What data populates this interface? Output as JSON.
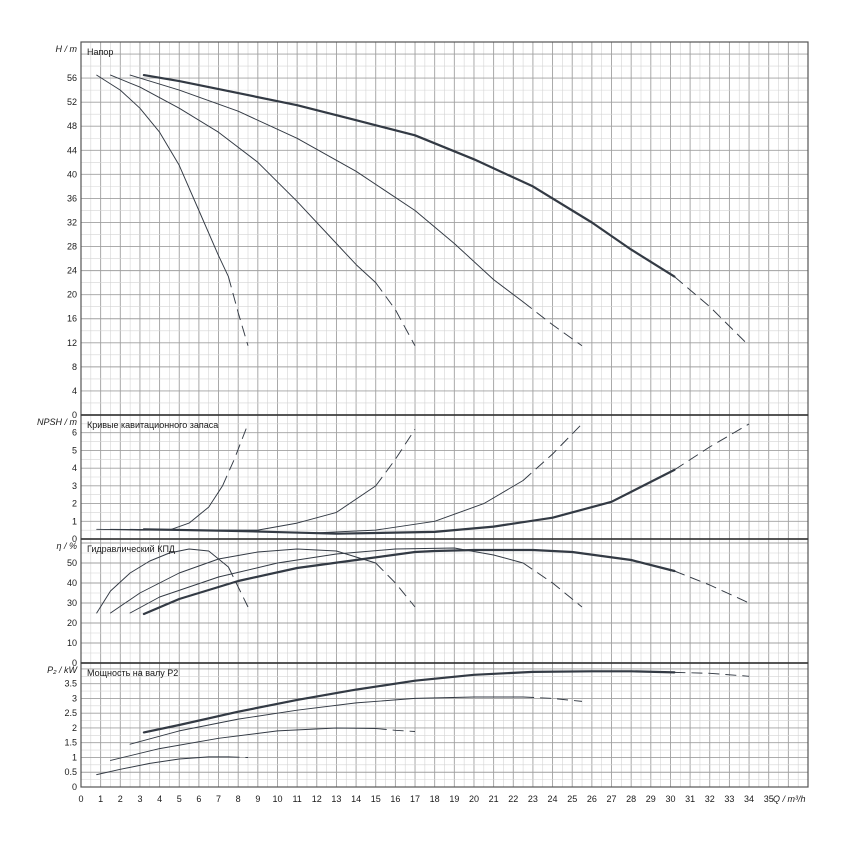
{
  "chart_data": {
    "type": "line",
    "x_axis": {
      "label": "Q / m³/h",
      "range": [
        0,
        37
      ],
      "ticks": [
        0,
        1,
        2,
        3,
        4,
        5,
        6,
        7,
        8,
        9,
        10,
        11,
        12,
        13,
        14,
        15,
        16,
        17,
        18,
        19,
        20,
        21,
        22,
        23,
        24,
        25,
        26,
        27,
        28,
        29,
        30,
        31,
        32,
        33,
        34,
        35
      ]
    },
    "panels": [
      {
        "id": "head",
        "title": "Напор",
        "ylabel": "H / m",
        "ylim": [
          0,
          62
        ],
        "ticks": [
          0,
          4,
          8,
          12,
          16,
          20,
          24,
          28,
          32,
          36,
          40,
          44,
          48,
          52,
          56
        ],
        "tick_labels": [
          "0",
          "4",
          "8",
          "12",
          "16",
          "20",
          "24",
          "28",
          "32",
          "36",
          "40",
          "44",
          "48",
          "52",
          "56"
        ],
        "series": [
          {
            "solid": [
              [
                0.8,
                56.5
              ],
              [
                2,
                54
              ],
              [
                3,
                51
              ],
              [
                4,
                47
              ],
              [
                5,
                41.5
              ],
              [
                6,
                34
              ],
              [
                7,
                26.5
              ],
              [
                7.5,
                23
              ]
            ],
            "dashed": [
              [
                7.5,
                23
              ],
              [
                8,
                17
              ],
              [
                8.5,
                11.5
              ]
            ]
          },
          {
            "solid": [
              [
                1.5,
                56.5
              ],
              [
                3,
                54.5
              ],
              [
                5,
                51
              ],
              [
                7,
                47
              ],
              [
                9,
                42
              ],
              [
                11,
                35.5
              ],
              [
                13,
                28.5
              ],
              [
                14,
                25
              ],
              [
                15,
                22
              ]
            ],
            "dashed": [
              [
                15,
                22
              ],
              [
                16,
                17.5
              ],
              [
                17,
                11.5
              ]
            ]
          },
          {
            "solid": [
              [
                2.5,
                56.5
              ],
              [
                5,
                54
              ],
              [
                8,
                50.5
              ],
              [
                11,
                46
              ],
              [
                14,
                40.5
              ],
              [
                17,
                34
              ],
              [
                19,
                28.5
              ],
              [
                21,
                22.5
              ],
              [
                22.5,
                18.8
              ]
            ],
            "dashed": [
              [
                22.5,
                18.8
              ],
              [
                24,
                15
              ],
              [
                25.5,
                11.5
              ]
            ]
          },
          {
            "solid": [
              [
                3.2,
                56.5
              ],
              [
                5,
                55.5
              ],
              [
                8,
                53.5
              ],
              [
                11,
                51.5
              ],
              [
                14,
                49
              ],
              [
                17,
                46.5
              ],
              [
                20,
                42.5
              ],
              [
                23,
                38
              ],
              [
                26,
                32
              ],
              [
                28,
                27.5
              ],
              [
                30.2,
                23
              ]
            ],
            "dashed": [
              [
                30.2,
                23
              ],
              [
                32,
                18
              ],
              [
                34,
                11.5
              ]
            ]
          }
        ]
      },
      {
        "id": "npsh",
        "title": "Кривые кавитационного запаса",
        "ylabel": "NPSH / m",
        "ylim": [
          0,
          7
        ],
        "ticks": [
          0,
          1,
          2,
          3,
          4,
          5,
          6
        ],
        "tick_labels": [
          "0",
          "1",
          "2",
          "3",
          "4",
          "5",
          "6"
        ],
        "series": [
          {
            "solid": [
              [
                0.8,
                0.55
              ],
              [
                3,
                0.5
              ],
              [
                4.5,
                0.5
              ],
              [
                5.5,
                0.9
              ],
              [
                6.5,
                1.8
              ],
              [
                7.2,
                3
              ]
            ],
            "dashed": [
              [
                7.2,
                3
              ],
              [
                7.8,
                4.5
              ],
              [
                8.5,
                6.5
              ]
            ]
          },
          {
            "solid": [
              [
                1.5,
                0.55
              ],
              [
                5,
                0.5
              ],
              [
                9,
                0.5
              ],
              [
                11,
                0.9
              ],
              [
                13,
                1.5
              ],
              [
                15,
                3
              ]
            ],
            "dashed": [
              [
                15,
                3
              ],
              [
                16,
                4.5
              ],
              [
                17,
                6.2
              ]
            ]
          },
          {
            "solid": [
              [
                2.5,
                0.55
              ],
              [
                8,
                0.45
              ],
              [
                12,
                0.35
              ],
              [
                15,
                0.5
              ],
              [
                18,
                1
              ],
              [
                20.5,
                2
              ],
              [
                22.5,
                3.3
              ]
            ],
            "dashed": [
              [
                22.5,
                3.3
              ],
              [
                24,
                4.8
              ],
              [
                25.5,
                6.5
              ]
            ]
          },
          {
            "solid": [
              [
                3.2,
                0.55
              ],
              [
                8,
                0.45
              ],
              [
                13,
                0.3
              ],
              [
                18,
                0.4
              ],
              [
                21,
                0.7
              ],
              [
                24,
                1.2
              ],
              [
                27,
                2.1
              ],
              [
                30.2,
                3.9
              ]
            ],
            "dashed": [
              [
                30.2,
                3.9
              ],
              [
                32,
                5.2
              ],
              [
                34,
                6.5
              ]
            ]
          }
        ]
      },
      {
        "id": "eff",
        "title": "Гидравлический КПД",
        "ylabel": "η / %",
        "ylim": [
          0,
          62
        ],
        "ticks": [
          0,
          10,
          20,
          30,
          40,
          50
        ],
        "tick_labels": [
          "0",
          "10",
          "20",
          "30",
          "40",
          "50"
        ],
        "series": [
          {
            "solid": [
              [
                0.8,
                25
              ],
              [
                1.5,
                36
              ],
              [
                2.5,
                45
              ],
              [
                3.5,
                51
              ],
              [
                4.5,
                55
              ],
              [
                5.5,
                57
              ],
              [
                6.5,
                56
              ],
              [
                7.5,
                48
              ]
            ],
            "dashed": [
              [
                7.5,
                48
              ],
              [
                8,
                38
              ],
              [
                8.5,
                28
              ]
            ]
          },
          {
            "solid": [
              [
                1.5,
                25
              ],
              [
                3,
                35
              ],
              [
                5,
                45
              ],
              [
                7,
                52
              ],
              [
                9,
                55.5
              ],
              [
                11,
                57
              ],
              [
                13,
                56
              ],
              [
                15,
                50
              ]
            ],
            "dashed": [
              [
                15,
                50
              ],
              [
                16,
                40
              ],
              [
                17,
                28
              ]
            ]
          },
          {
            "solid": [
              [
                2.5,
                25
              ],
              [
                4,
                33
              ],
              [
                7,
                43
              ],
              [
                10,
                50
              ],
              [
                13,
                54.5
              ],
              [
                16,
                57
              ],
              [
                19,
                57.5
              ],
              [
                21,
                54
              ],
              [
                22.5,
                50
              ]
            ],
            "dashed": [
              [
                22.5,
                50
              ],
              [
                24,
                40
              ],
              [
                25.5,
                28
              ]
            ]
          },
          {
            "solid": [
              [
                3.2,
                24.5
              ],
              [
                5,
                32
              ],
              [
                8,
                41
              ],
              [
                11,
                47.5
              ],
              [
                14,
                51.5
              ],
              [
                17,
                55.5
              ],
              [
                18,
                56
              ],
              [
                20,
                56.5
              ],
              [
                23,
                56.5
              ],
              [
                25,
                55.5
              ],
              [
                28,
                51.5
              ],
              [
                30.2,
                46
              ]
            ],
            "dashed": [
              [
                30.2,
                46
              ],
              [
                32,
                39
              ],
              [
                34,
                30
              ]
            ]
          }
        ]
      },
      {
        "id": "power",
        "title": "Мощность на валу P2",
        "ylabel": "P₂ / kW",
        "ylim": [
          0,
          4.2
        ],
        "ticks": [
          0,
          0.5,
          1,
          1.5,
          2,
          2.5,
          3,
          3.5
        ],
        "tick_labels": [
          "0",
          "0.5",
          "1",
          "1.5",
          "2",
          "2.5",
          "3",
          "3.5"
        ],
        "series": [
          {
            "solid": [
              [
                0.8,
                0.42
              ],
              [
                2,
                0.6
              ],
              [
                3.5,
                0.8
              ],
              [
                5,
                0.95
              ],
              [
                6.5,
                1.02
              ],
              [
                7.5,
                1.02
              ]
            ],
            "dashed": [
              [
                7.5,
                1.02
              ],
              [
                8,
                1.01
              ],
              [
                8.5,
                1
              ]
            ]
          },
          {
            "solid": [
              [
                1.5,
                0.9
              ],
              [
                4,
                1.3
              ],
              [
                7,
                1.65
              ],
              [
                10,
                1.9
              ],
              [
                13,
                2
              ],
              [
                15,
                1.98
              ]
            ],
            "dashed": [
              [
                15,
                1.98
              ],
              [
                16,
                1.92
              ],
              [
                17,
                1.88
              ]
            ]
          },
          {
            "solid": [
              [
                2.5,
                1.45
              ],
              [
                5,
                1.9
              ],
              [
                8,
                2.3
              ],
              [
                11,
                2.6
              ],
              [
                14,
                2.85
              ],
              [
                17,
                3
              ],
              [
                20,
                3.05
              ],
              [
                22.5,
                3.05
              ]
            ],
            "dashed": [
              [
                22.5,
                3.05
              ],
              [
                24,
                3
              ],
              [
                25.5,
                2.9
              ]
            ]
          },
          {
            "solid": [
              [
                3.2,
                1.85
              ],
              [
                5,
                2.1
              ],
              [
                8,
                2.55
              ],
              [
                11,
                2.95
              ],
              [
                14,
                3.3
              ],
              [
                17,
                3.6
              ],
              [
                20,
                3.8
              ],
              [
                23,
                3.9
              ],
              [
                26,
                3.92
              ],
              [
                28,
                3.92
              ],
              [
                30.2,
                3.88
              ]
            ],
            "dashed": [
              [
                30.2,
                3.88
              ],
              [
                32,
                3.85
              ],
              [
                34,
                3.75
              ]
            ]
          }
        ]
      }
    ],
    "colors": {
      "curve": "#333a44",
      "grid_major": "#a0a0a0",
      "grid_minor": "#d4d4d4"
    },
    "grid": true
  }
}
